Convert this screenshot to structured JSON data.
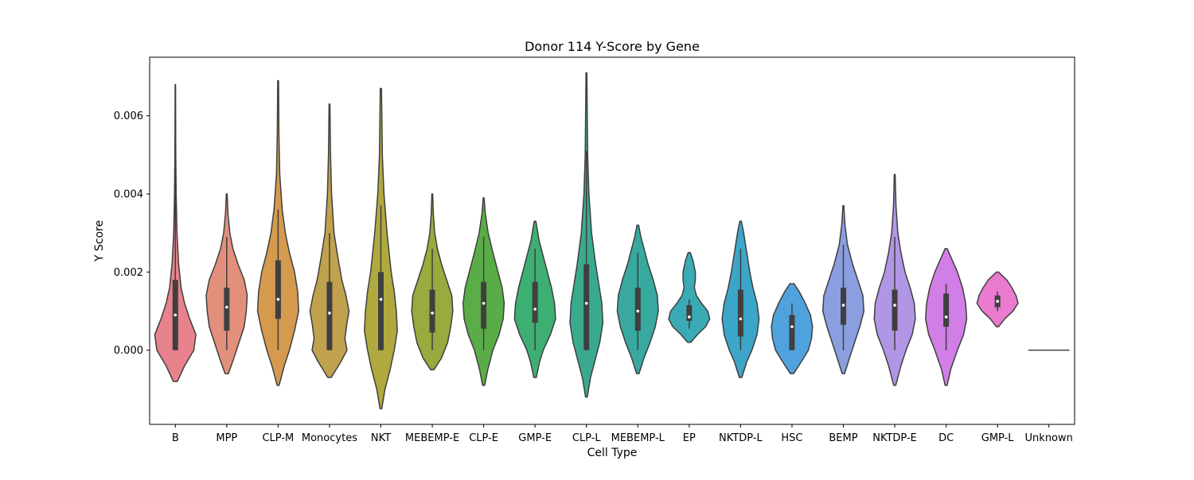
{
  "chart_data": {
    "type": "violin",
    "title": "Donor 114 Y-Score by Gene",
    "xlabel": "Cell Type",
    "ylabel": "Y Score",
    "ylim": [
      -0.0019,
      0.0075
    ],
    "yticks": [
      {
        "value": 0.0,
        "label": "0.000"
      },
      {
        "value": 0.002,
        "label": "0.002"
      },
      {
        "value": 0.004,
        "label": "0.004"
      },
      {
        "value": 0.006,
        "label": "0.006"
      }
    ],
    "grid": false,
    "categories": [
      {
        "name": "B",
        "color": "#e8828c",
        "min": -0.0008,
        "max": 0.0068,
        "q1": 0.0,
        "median": 0.0009,
        "q3": 0.0018,
        "wlo": 0.0,
        "whi": 0.0046,
        "shape": [
          [
            -0.0008,
            0.1
          ],
          [
            -0.0004,
            0.45
          ],
          [
            0.0,
            0.9
          ],
          [
            0.0004,
            1.0
          ],
          [
            0.0008,
            0.7
          ],
          [
            0.0012,
            0.45
          ],
          [
            0.0016,
            0.28
          ],
          [
            0.0022,
            0.16
          ],
          [
            0.003,
            0.08
          ],
          [
            0.004,
            0.04
          ],
          [
            0.005,
            0.02
          ],
          [
            0.0068,
            0.01
          ]
        ]
      },
      {
        "name": "MPP",
        "color": "#e2907c",
        "min": -0.0006,
        "max": 0.004,
        "q1": 0.0005,
        "median": 0.0011,
        "q3": 0.0016,
        "wlo": 0.0,
        "whi": 0.0029,
        "shape": [
          [
            -0.0006,
            0.08
          ],
          [
            -0.0002,
            0.35
          ],
          [
            0.0002,
            0.6
          ],
          [
            0.0006,
            0.85
          ],
          [
            0.001,
            0.95
          ],
          [
            0.0014,
            1.0
          ],
          [
            0.0018,
            0.85
          ],
          [
            0.0022,
            0.55
          ],
          [
            0.0026,
            0.3
          ],
          [
            0.003,
            0.15
          ],
          [
            0.0035,
            0.06
          ],
          [
            0.004,
            0.02
          ]
        ]
      },
      {
        "name": "CLP-M",
        "color": "#d59a4e",
        "min": -0.0009,
        "max": 0.0069,
        "q1": 0.0008,
        "median": 0.0013,
        "q3": 0.0023,
        "wlo": 0.0,
        "whi": 0.0036,
        "shape": [
          [
            -0.0009,
            0.05
          ],
          [
            -0.0004,
            0.3
          ],
          [
            0.0,
            0.55
          ],
          [
            0.0005,
            0.8
          ],
          [
            0.001,
            1.0
          ],
          [
            0.0015,
            0.95
          ],
          [
            0.002,
            0.8
          ],
          [
            0.0025,
            0.55
          ],
          [
            0.003,
            0.35
          ],
          [
            0.0036,
            0.2
          ],
          [
            0.0045,
            0.08
          ],
          [
            0.0055,
            0.04
          ],
          [
            0.0069,
            0.02
          ]
        ]
      },
      {
        "name": "Monocytes",
        "color": "#c0a24e",
        "min": -0.0007,
        "max": 0.0063,
        "q1": 0.0,
        "median": 0.00095,
        "q3": 0.00175,
        "wlo": 0.0,
        "whi": 0.003,
        "shape": [
          [
            -0.0007,
            0.08
          ],
          [
            -0.0003,
            0.55
          ],
          [
            0.0,
            0.85
          ],
          [
            0.0003,
            0.75
          ],
          [
            0.0007,
            0.85
          ],
          [
            0.001,
            0.95
          ],
          [
            0.0014,
            0.8
          ],
          [
            0.0018,
            0.6
          ],
          [
            0.0024,
            0.4
          ],
          [
            0.003,
            0.22
          ],
          [
            0.004,
            0.1
          ],
          [
            0.005,
            0.05
          ],
          [
            0.0063,
            0.02
          ]
        ]
      },
      {
        "name": "NKT",
        "color": "#b0a93e",
        "min": -0.0015,
        "max": 0.0067,
        "q1": 0.0,
        "median": 0.0013,
        "q3": 0.002,
        "wlo": 0.0,
        "whi": 0.0037,
        "shape": [
          [
            -0.0015,
            0.04
          ],
          [
            -0.001,
            0.2
          ],
          [
            -0.0005,
            0.45
          ],
          [
            0.0,
            0.65
          ],
          [
            0.0005,
            0.8
          ],
          [
            0.001,
            0.75
          ],
          [
            0.0015,
            0.65
          ],
          [
            0.002,
            0.5
          ],
          [
            0.003,
            0.3
          ],
          [
            0.004,
            0.15
          ],
          [
            0.005,
            0.07
          ],
          [
            0.0067,
            0.03
          ]
        ]
      },
      {
        "name": "MEBEMP-E",
        "color": "#97ab3e",
        "min": -0.0005,
        "max": 0.004,
        "q1": 0.00045,
        "median": 0.00095,
        "q3": 0.00155,
        "wlo": 0.0,
        "whi": 0.0026,
        "shape": [
          [
            -0.0005,
            0.08
          ],
          [
            -0.0002,
            0.45
          ],
          [
            0.0002,
            0.75
          ],
          [
            0.0006,
            0.9
          ],
          [
            0.001,
            1.0
          ],
          [
            0.0014,
            0.95
          ],
          [
            0.0018,
            0.7
          ],
          [
            0.0022,
            0.45
          ],
          [
            0.0026,
            0.25
          ],
          [
            0.003,
            0.12
          ],
          [
            0.0035,
            0.05
          ],
          [
            0.004,
            0.02
          ]
        ]
      },
      {
        "name": "CLP-E",
        "color": "#5aad46",
        "min": -0.0009,
        "max": 0.0039,
        "q1": 0.00055,
        "median": 0.0012,
        "q3": 0.00175,
        "wlo": 0.0,
        "whi": 0.0029,
        "shape": [
          [
            -0.0009,
            0.05
          ],
          [
            -0.0005,
            0.2
          ],
          [
            0.0,
            0.45
          ],
          [
            0.0004,
            0.75
          ],
          [
            0.0008,
            0.95
          ],
          [
            0.0012,
            1.0
          ],
          [
            0.0016,
            0.9
          ],
          [
            0.002,
            0.7
          ],
          [
            0.0025,
            0.45
          ],
          [
            0.003,
            0.22
          ],
          [
            0.0035,
            0.08
          ],
          [
            0.0039,
            0.02
          ]
        ]
      },
      {
        "name": "GMP-E",
        "color": "#3daf72",
        "min": -0.0007,
        "max": 0.0033,
        "q1": 0.0007,
        "median": 0.00105,
        "q3": 0.00175,
        "wlo": 0.0,
        "whi": 0.0026,
        "shape": [
          [
            -0.0007,
            0.06
          ],
          [
            -0.0003,
            0.22
          ],
          [
            0.0,
            0.4
          ],
          [
            0.0004,
            0.75
          ],
          [
            0.0008,
            1.0
          ],
          [
            0.0012,
            0.95
          ],
          [
            0.0016,
            0.8
          ],
          [
            0.002,
            0.6
          ],
          [
            0.0024,
            0.4
          ],
          [
            0.0028,
            0.2
          ],
          [
            0.0033,
            0.04
          ]
        ]
      },
      {
        "name": "CLP-L",
        "color": "#3aaa8f",
        "min": -0.0012,
        "max": 0.0071,
        "q1": 0.0,
        "median": 0.0012,
        "q3": 0.0022,
        "wlo": 0.0,
        "whi": 0.0051,
        "shape": [
          [
            -0.0012,
            0.04
          ],
          [
            -0.0007,
            0.2
          ],
          [
            -0.0002,
            0.45
          ],
          [
            0.0002,
            0.65
          ],
          [
            0.0007,
            0.8
          ],
          [
            0.0012,
            0.75
          ],
          [
            0.0017,
            0.6
          ],
          [
            0.0022,
            0.45
          ],
          [
            0.003,
            0.25
          ],
          [
            0.004,
            0.12
          ],
          [
            0.005,
            0.06
          ],
          [
            0.0071,
            0.02
          ]
        ]
      },
      {
        "name": "MEBEMP-L",
        "color": "#38a99f",
        "min": -0.0006,
        "max": 0.0032,
        "q1": 0.0005,
        "median": 0.001,
        "q3": 0.0016,
        "wlo": 0.0,
        "whi": 0.0025,
        "shape": [
          [
            -0.0006,
            0.06
          ],
          [
            -0.0002,
            0.3
          ],
          [
            0.0002,
            0.6
          ],
          [
            0.0006,
            0.85
          ],
          [
            0.001,
            1.0
          ],
          [
            0.0014,
            0.95
          ],
          [
            0.0018,
            0.75
          ],
          [
            0.0022,
            0.5
          ],
          [
            0.0026,
            0.3
          ],
          [
            0.0029,
            0.15
          ],
          [
            0.0032,
            0.04
          ]
        ]
      },
      {
        "name": "EP",
        "color": "#3aabb5",
        "min": 0.0002,
        "max": 0.0025,
        "q1": 0.00075,
        "median": 0.00085,
        "q3": 0.00115,
        "wlo": 0.00055,
        "whi": 0.0013,
        "shape": [
          [
            0.0002,
            0.08
          ],
          [
            0.0004,
            0.4
          ],
          [
            0.0006,
            0.8
          ],
          [
            0.0008,
            1.0
          ],
          [
            0.001,
            0.9
          ],
          [
            0.0012,
            0.6
          ],
          [
            0.0014,
            0.35
          ],
          [
            0.0016,
            0.25
          ],
          [
            0.0018,
            0.3
          ],
          [
            0.002,
            0.3
          ],
          [
            0.0023,
            0.18
          ],
          [
            0.0025,
            0.05
          ]
        ]
      },
      {
        "name": "NKTDP-L",
        "color": "#3ca6c8",
        "min": -0.0007,
        "max": 0.0033,
        "q1": 0.00035,
        "median": 0.0008,
        "q3": 0.00155,
        "wlo": 0.0,
        "whi": 0.0026,
        "shape": [
          [
            -0.0007,
            0.06
          ],
          [
            -0.0003,
            0.3
          ],
          [
            0.0,
            0.55
          ],
          [
            0.0004,
            0.8
          ],
          [
            0.0008,
            0.9
          ],
          [
            0.0012,
            0.8
          ],
          [
            0.0016,
            0.6
          ],
          [
            0.002,
            0.45
          ],
          [
            0.0025,
            0.3
          ],
          [
            0.003,
            0.15
          ],
          [
            0.0033,
            0.04
          ]
        ]
      },
      {
        "name": "HSC",
        "color": "#4fa2dd",
        "min": -0.0006,
        "max": 0.0017,
        "q1": 0.0,
        "median": 0.0006,
        "q3": 0.0009,
        "wlo": 0.0,
        "whi": 0.0012,
        "shape": [
          [
            -0.0006,
            0.08
          ],
          [
            -0.0003,
            0.45
          ],
          [
            0.0,
            0.8
          ],
          [
            0.0003,
            0.95
          ],
          [
            0.0006,
            1.0
          ],
          [
            0.0009,
            0.9
          ],
          [
            0.0012,
            0.65
          ],
          [
            0.0015,
            0.35
          ],
          [
            0.0017,
            0.1
          ]
        ]
      },
      {
        "name": "BEMP",
        "color": "#8a9ee0",
        "min": -0.0006,
        "max": 0.0037,
        "q1": 0.00065,
        "median": 0.00115,
        "q3": 0.0016,
        "wlo": 0.0,
        "whi": 0.0027,
        "shape": [
          [
            -0.0006,
            0.06
          ],
          [
            -0.0002,
            0.3
          ],
          [
            0.0002,
            0.55
          ],
          [
            0.0006,
            0.8
          ],
          [
            0.001,
            1.0
          ],
          [
            0.0014,
            0.95
          ],
          [
            0.0018,
            0.7
          ],
          [
            0.0022,
            0.45
          ],
          [
            0.0027,
            0.2
          ],
          [
            0.0032,
            0.08
          ],
          [
            0.0037,
            0.02
          ]
        ]
      },
      {
        "name": "NKTDP-E",
        "color": "#b296e6",
        "min": -0.0009,
        "max": 0.0045,
        "q1": 0.0005,
        "median": 0.00115,
        "q3": 0.00155,
        "wlo": 0.0,
        "whi": 0.0029,
        "shape": [
          [
            -0.0009,
            0.05
          ],
          [
            -0.0004,
            0.3
          ],
          [
            0.0,
            0.55
          ],
          [
            0.0004,
            0.85
          ],
          [
            0.0008,
            1.0
          ],
          [
            0.0012,
            0.95
          ],
          [
            0.0016,
            0.75
          ],
          [
            0.002,
            0.5
          ],
          [
            0.0025,
            0.3
          ],
          [
            0.003,
            0.15
          ],
          [
            0.0037,
            0.06
          ],
          [
            0.0045,
            0.02
          ]
        ]
      },
      {
        "name": "DC",
        "color": "#d17ee6",
        "min": -0.0009,
        "max": 0.0026,
        "q1": 0.0006,
        "median": 0.00085,
        "q3": 0.00145,
        "wlo": 0.0,
        "whi": 0.0017,
        "shape": [
          [
            -0.0009,
            0.05
          ],
          [
            -0.0005,
            0.22
          ],
          [
            0.0,
            0.55
          ],
          [
            0.0004,
            0.85
          ],
          [
            0.0008,
            1.0
          ],
          [
            0.0012,
            0.95
          ],
          [
            0.0016,
            0.8
          ],
          [
            0.002,
            0.55
          ],
          [
            0.0023,
            0.3
          ],
          [
            0.0026,
            0.05
          ]
        ]
      },
      {
        "name": "GMP-L",
        "color": "#ea7bcf",
        "min": 0.0006,
        "max": 0.002,
        "q1": 0.0011,
        "median": 0.00125,
        "q3": 0.0014,
        "wlo": 0.001,
        "whi": 0.0015,
        "shape": [
          [
            0.0006,
            0.05
          ],
          [
            0.0008,
            0.35
          ],
          [
            0.001,
            0.75
          ],
          [
            0.0012,
            1.0
          ],
          [
            0.0014,
            0.9
          ],
          [
            0.0016,
            0.7
          ],
          [
            0.0018,
            0.45
          ],
          [
            0.002,
            0.05
          ]
        ]
      },
      {
        "name": "Unknown",
        "color": "#444444",
        "min": 0.0,
        "max": 0.0,
        "q1": 0.0,
        "median": 0.0,
        "q3": 0.0,
        "wlo": 0.0,
        "whi": 0.0,
        "shape": []
      }
    ]
  }
}
